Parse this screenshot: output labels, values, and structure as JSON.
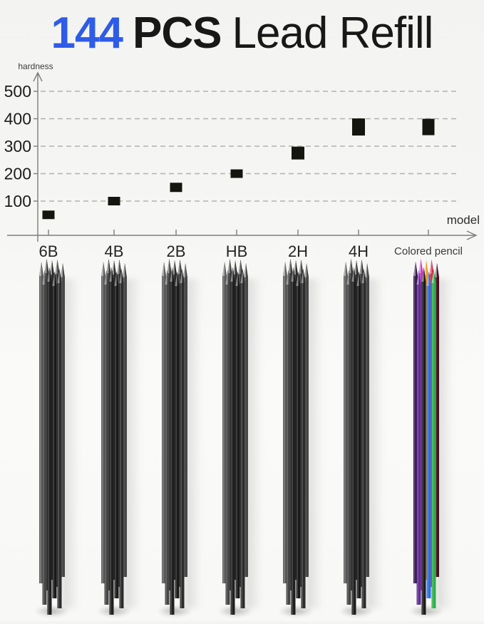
{
  "header": {
    "count": "144",
    "unit": "PCS",
    "product": "Lead Refill",
    "accent_color": "#2e5ce7",
    "text_color": "#181818"
  },
  "chart_data": {
    "type": "scatter",
    "title": "144 PCS Lead Refill",
    "xlabel": "model",
    "ylabel": "hardness",
    "categories": [
      "6B",
      "4B",
      "2B",
      "HB",
      "2H",
      "4H",
      "Colored pencil"
    ],
    "values": [
      50,
      100,
      150,
      200,
      275,
      370,
      370
    ],
    "yticks": [
      100,
      200,
      300,
      400,
      500
    ],
    "ylim": [
      0,
      550
    ],
    "grid": "horizontal-dashed",
    "legend": "none",
    "marker_shape": "square",
    "marker_color": "#151510",
    "axis_color": "#7d7d7d",
    "grid_color": "#b1b1b1",
    "tick_label_color": "#1c1c1c",
    "axis_title_color": "#3c3c3c"
  },
  "bundles": {
    "items": [
      {
        "model": "6B",
        "palette": "graphite"
      },
      {
        "model": "4B",
        "palette": "graphite"
      },
      {
        "model": "2B",
        "palette": "graphite"
      },
      {
        "model": "HB",
        "palette": "graphite"
      },
      {
        "model": "2H",
        "palette": "graphite"
      },
      {
        "model": "4H",
        "palette": "graphite"
      },
      {
        "model": "Colored pencil",
        "palette": "colored"
      }
    ],
    "palettes": {
      "graphite": [
        "#5f5f5f",
        "#3a3a3a",
        "#2b2b2b",
        "#343434",
        "#474747",
        "#454545",
        "#1f1f1f",
        "#191919",
        "#2c2c2c"
      ],
      "colored": [
        "#35184f",
        "#cc2fd0",
        "#e89a20",
        "#cf2645",
        "#4a0f22",
        "#5d2f91",
        "#1c1c1c",
        "#2b6fe3",
        "#2fae4a"
      ]
    }
  }
}
